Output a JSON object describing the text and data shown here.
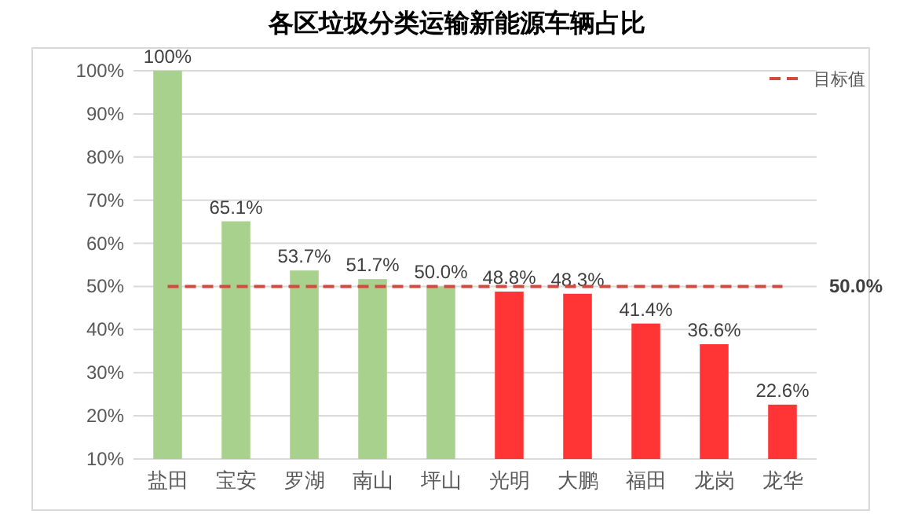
{
  "chart_data": {
    "type": "bar",
    "title": "各区垃圾分类运输新能源车辆占比",
    "categories": [
      "盐田",
      "宝安",
      "罗湖",
      "南山",
      "坪山",
      "光明",
      "大鹏",
      "福田",
      "龙岗",
      "龙华"
    ],
    "series": [
      {
        "colors": [
          "#a9d18e",
          "#a9d18e",
          "#a9d18e",
          "#a9d18e",
          "#a9d18e",
          "#ff3535",
          "#ff3535",
          "#ff3535",
          "#ff3535",
          "#ff3535"
        ],
        "values": [
          100,
          65.1,
          53.7,
          51.7,
          50.0,
          48.8,
          48.3,
          41.4,
          36.6,
          22.6
        ],
        "value_labels": [
          "100%",
          "65.1%",
          "53.7%",
          "51.7%",
          "50.0%",
          "48.8%",
          "48.3%",
          "41.4%",
          "36.6%",
          "22.6%"
        ]
      },
      {
        "type": "line",
        "name": "目标值",
        "color": "#d04a3f",
        "values": [
          50,
          50,
          50,
          50,
          50,
          50,
          50,
          50,
          50,
          50
        ]
      }
    ],
    "line_style": "dashed",
    "annotations": [
      {
        "text": "50.0%",
        "x": "龙华",
        "y": 50
      }
    ],
    "ylim": [
      10,
      100
    ],
    "yticks": [
      {
        "value": 10,
        "label": "10%"
      },
      {
        "value": 20,
        "label": "20%"
      },
      {
        "value": 30,
        "label": "30%"
      },
      {
        "value": 40,
        "label": "40%"
      },
      {
        "value": 50,
        "label": "50%"
      },
      {
        "value": 60,
        "label": "60%"
      },
      {
        "value": 70,
        "label": "70%"
      },
      {
        "value": 80,
        "label": "80%"
      },
      {
        "value": 90,
        "label": "90%"
      },
      {
        "value": 100,
        "label": "100%"
      }
    ],
    "legend": "top right",
    "grid": "y"
  }
}
